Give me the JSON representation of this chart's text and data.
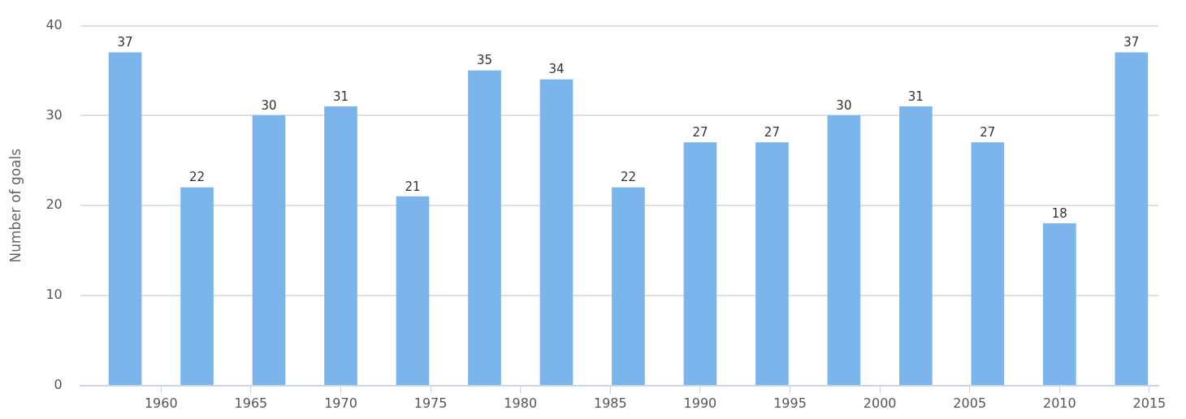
{
  "chart_data": {
    "type": "bar",
    "ylabel": "Number of goals",
    "x": [
      1958,
      1962,
      1966,
      1970,
      1974,
      1978,
      1982,
      1986,
      1990,
      1994,
      1998,
      2002,
      2006,
      2010,
      2014
    ],
    "values": [
      37,
      22,
      30,
      31,
      21,
      35,
      34,
      22,
      27,
      27,
      30,
      31,
      27,
      18,
      37
    ],
    "color": "#7cb5ec",
    "xlim": [
      1955.5,
      2015.5
    ],
    "xticks": [
      1960,
      1965,
      1970,
      1975,
      1980,
      1985,
      1990,
      1995,
      2000,
      2005,
      2010,
      2015
    ],
    "ylim": [
      0,
      40
    ],
    "yticks": [
      0,
      10,
      20,
      30,
      40
    ],
    "grid": "y",
    "data_labels": true,
    "legend": false
  }
}
